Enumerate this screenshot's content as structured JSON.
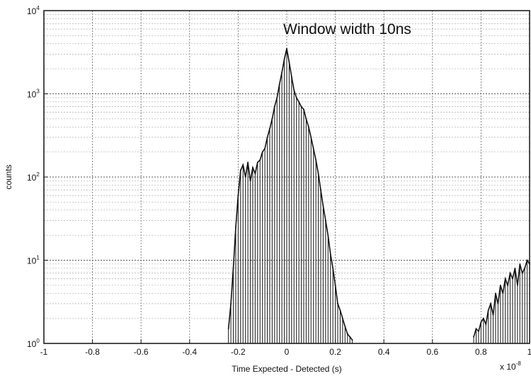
{
  "chart_data": {
    "type": "line",
    "title": "",
    "xlabel": "Time Expected - Detected  (s)",
    "ylabel": "counts",
    "annotation": "Window width 10ns",
    "x_multiplier": "x 10",
    "x_multiplier_exp": "-8",
    "xlim": [
      -1,
      1
    ],
    "ylim": [
      1,
      10000
    ],
    "yscale": "log",
    "grid": true,
    "legend": "none",
    "x_ticks": [
      -1,
      -0.8,
      -0.6,
      -0.4,
      -0.2,
      0,
      0.2,
      0.4,
      0.6,
      0.8,
      1
    ],
    "x_tick_labels": [
      "-1",
      "-0.8",
      "-0.6",
      "-0.4",
      "-0.2",
      "0",
      "0.2",
      "0.4",
      "0.6",
      "0.8",
      "1"
    ],
    "y_ticks": [
      {
        "value": 1,
        "base": "10",
        "exp": "0"
      },
      {
        "value": 10,
        "base": "10",
        "exp": "1"
      },
      {
        "value": 100,
        "base": "10",
        "exp": "2"
      },
      {
        "value": 1000,
        "base": "10",
        "exp": "3"
      },
      {
        "value": 10000,
        "base": "10",
        "exp": "4"
      }
    ],
    "series": [
      {
        "color": "#111111",
        "x": [
          -0.24,
          -0.23,
          -0.22,
          -0.21,
          -0.2,
          -0.19,
          -0.18,
          -0.17,
          -0.16,
          -0.15,
          -0.14,
          -0.13,
          -0.12,
          -0.11,
          -0.1,
          -0.09,
          -0.08,
          -0.07,
          -0.06,
          -0.05,
          -0.04,
          -0.03,
          -0.02,
          -0.01,
          0.0,
          0.01,
          0.02,
          0.03,
          0.04,
          0.05,
          0.06,
          0.07,
          0.08,
          0.09,
          0.1,
          0.11,
          0.12,
          0.13,
          0.14,
          0.15,
          0.16,
          0.17,
          0.18,
          0.19,
          0.2,
          0.21,
          0.22,
          0.23,
          0.24,
          0.25,
          0.26,
          0.27
        ],
        "y": [
          1.5,
          3,
          8,
          25,
          60,
          120,
          140,
          100,
          150,
          90,
          130,
          110,
          150,
          160,
          200,
          220,
          300,
          380,
          500,
          700,
          900,
          1300,
          1800,
          2600,
          3500,
          2400,
          1600,
          1100,
          900,
          800,
          700,
          650,
          500,
          400,
          300,
          220,
          160,
          110,
          70,
          45,
          30,
          20,
          12,
          8,
          5,
          3,
          2.5,
          2,
          1.6,
          1.3,
          1.2,
          1.1
        ]
      },
      {
        "color": "#111111",
        "x": [
          0.77,
          0.78,
          0.79,
          0.8,
          0.81,
          0.82,
          0.83,
          0.84,
          0.85,
          0.86,
          0.87,
          0.88,
          0.89,
          0.9,
          0.91,
          0.92,
          0.93,
          0.94,
          0.95,
          0.96,
          0.97,
          0.98,
          0.99,
          1.0
        ],
        "y": [
          1.2,
          1.5,
          1.4,
          1.8,
          2,
          1.7,
          2.5,
          3,
          2.2,
          4,
          3,
          5,
          4,
          6,
          5,
          7,
          6,
          8,
          5,
          9,
          7,
          8,
          10,
          9
        ]
      }
    ]
  }
}
